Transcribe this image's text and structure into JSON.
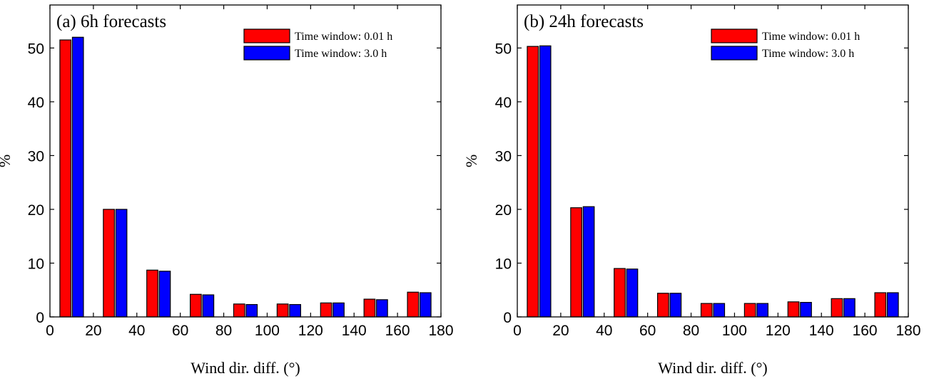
{
  "chart_data": [
    {
      "type": "bar",
      "title": "(a) 6h forecasts",
      "xlabel": "Wind dir. diff. (°)",
      "ylabel": "%",
      "x": [
        10,
        30,
        50,
        70,
        90,
        110,
        130,
        150,
        170
      ],
      "xlim": [
        0,
        180
      ],
      "ylim": [
        0,
        58
      ],
      "xticks": [
        0,
        20,
        40,
        60,
        80,
        100,
        120,
        140,
        160,
        180
      ],
      "yticks": [
        0,
        10,
        20,
        30,
        40,
        50
      ],
      "legend_position": "top-right",
      "series": [
        {
          "name": "Time window: 0.01 h",
          "color": "#ff0000",
          "values": [
            51.5,
            20.0,
            8.7,
            4.2,
            2.4,
            2.4,
            2.6,
            3.3,
            4.6
          ]
        },
        {
          "name": "Time window: 3.0 h",
          "color": "#0000ff",
          "values": [
            52.0,
            20.0,
            8.5,
            4.1,
            2.3,
            2.3,
            2.6,
            3.2,
            4.5
          ]
        }
      ]
    },
    {
      "type": "bar",
      "title": "(b) 24h forecasts",
      "xlabel": "Wind dir. diff. (°)",
      "ylabel": "%",
      "x": [
        10,
        30,
        50,
        70,
        90,
        110,
        130,
        150,
        170
      ],
      "xlim": [
        0,
        180
      ],
      "ylim": [
        0,
        58
      ],
      "xticks": [
        0,
        20,
        40,
        60,
        80,
        100,
        120,
        140,
        160,
        180
      ],
      "yticks": [
        0,
        10,
        20,
        30,
        40,
        50
      ],
      "legend_position": "top-right",
      "series": [
        {
          "name": "Time window: 0.01 h",
          "color": "#ff0000",
          "values": [
            50.3,
            20.3,
            9.0,
            4.4,
            2.5,
            2.5,
            2.8,
            3.4,
            4.5
          ]
        },
        {
          "name": "Time window: 3.0 h",
          "color": "#0000ff",
          "values": [
            50.4,
            20.5,
            8.9,
            4.4,
            2.5,
            2.5,
            2.7,
            3.4,
            4.5
          ]
        }
      ]
    }
  ]
}
